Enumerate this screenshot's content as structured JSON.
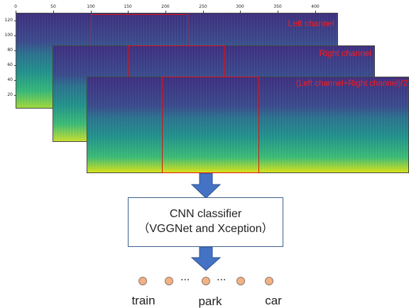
{
  "axes": {
    "x_ticks": [
      "0",
      "50",
      "100",
      "150",
      "200",
      "250",
      "300",
      "350",
      "400"
    ],
    "y_ticks": [
      "120",
      "100",
      "80",
      "60",
      "40",
      "20"
    ]
  },
  "spectrograms": [
    {
      "label": "Left channel",
      "label_color": "#ff1a1a"
    },
    {
      "label": "Right channel",
      "label_color": "#ff1a1a"
    },
    {
      "label": "(Left channel+Right channel)/2",
      "label_color": "#ff1a1a"
    }
  ],
  "classifier": {
    "line1": "CNN classifier",
    "line2": "（VGGNet and Xception）"
  },
  "outputs": {
    "node_color": "#f4b183",
    "ellipsis_left": "···",
    "ellipsis_right": "···",
    "labels": [
      "train",
      "park",
      "car"
    ]
  },
  "colors": {
    "arrow": "#4472c4",
    "roi": "#e01010",
    "spectrogram_low": "#440154",
    "spectrogram_mid": "#21918c",
    "spectrogram_high": "#fde725"
  }
}
